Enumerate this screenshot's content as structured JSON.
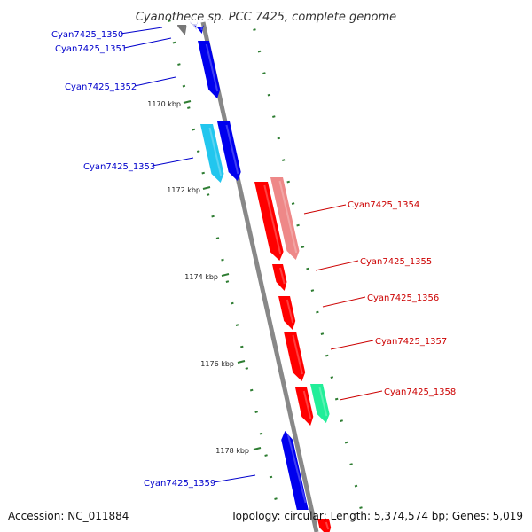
{
  "title": "Cyanothece sp. PCC 7425, complete genome",
  "accession": "Accession: NC_011884",
  "topology": "Topology: circular; Length: 5,374,574 bp; Genes: 5,019",
  "colors": {
    "backbone": "#888888",
    "tick": "#2e7d32",
    "forward_label": "#0000cc",
    "reverse_label": "#cc0000",
    "gene_blue": "#0000ee",
    "gene_cyan": "#22c6ee",
    "gene_red": "#ff0000",
    "gene_pink": "#ee8888",
    "gene_green": "#22ee99",
    "gene_grey": "#777777",
    "gene_lavender": "#c8c8f0"
  },
  "scale_labels": [
    {
      "kbp": 1170,
      "text": "1170 kbp"
    },
    {
      "kbp": 1172,
      "text": "1172 kbp"
    },
    {
      "kbp": 1174,
      "text": "1174 kbp"
    },
    {
      "kbp": 1176,
      "text": "1176 kbp"
    },
    {
      "kbp": 1178,
      "text": "1178 kbp"
    }
  ],
  "gene_labels": [
    {
      "text": "Cyan7425_1350",
      "strand": "forward"
    },
    {
      "text": "Cyan7425_1351",
      "strand": "forward"
    },
    {
      "text": "Cyan7425_1352",
      "strand": "forward"
    },
    {
      "text": "Cyan7425_1353",
      "strand": "forward"
    },
    {
      "text": "Cyan7425_1354",
      "strand": "reverse"
    },
    {
      "text": "Cyan7425_1355",
      "strand": "reverse"
    },
    {
      "text": "Cyan7425_1356",
      "strand": "reverse"
    },
    {
      "text": "Cyan7425_1357",
      "strand": "reverse"
    },
    {
      "text": "Cyan7425_1358",
      "strand": "reverse"
    },
    {
      "text": "Cyan7425_1359",
      "strand": "forward"
    }
  ]
}
